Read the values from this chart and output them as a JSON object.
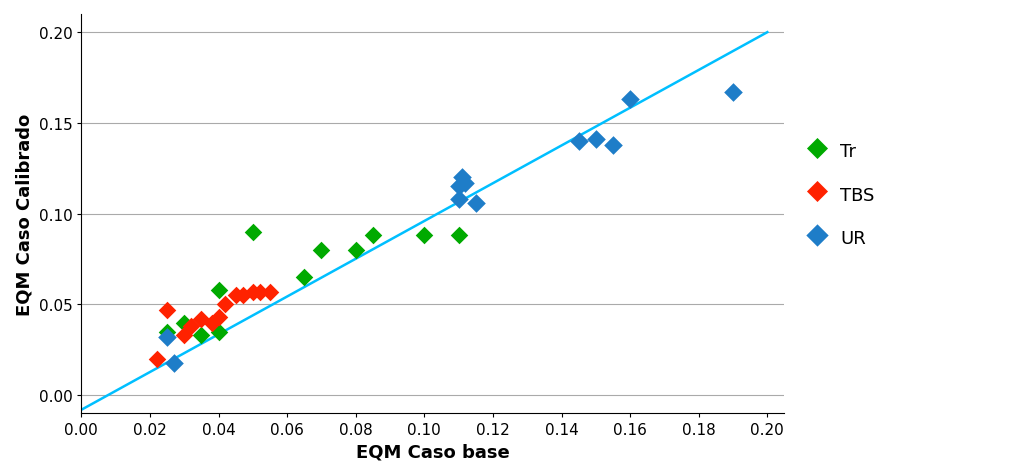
{
  "tr_x": [
    0.025,
    0.03,
    0.035,
    0.04,
    0.04,
    0.05,
    0.065,
    0.07,
    0.08,
    0.085,
    0.1,
    0.11
  ],
  "tr_y": [
    0.035,
    0.04,
    0.033,
    0.058,
    0.035,
    0.09,
    0.065,
    0.08,
    0.08,
    0.088,
    0.088,
    0.088
  ],
  "tbs_x": [
    0.022,
    0.025,
    0.03,
    0.032,
    0.035,
    0.038,
    0.04,
    0.042,
    0.045,
    0.047,
    0.05,
    0.052,
    0.055
  ],
  "tbs_y": [
    0.02,
    0.047,
    0.033,
    0.038,
    0.042,
    0.04,
    0.043,
    0.05,
    0.055,
    0.055,
    0.057,
    0.057,
    0.057
  ],
  "ur_x": [
    0.025,
    0.027,
    0.11,
    0.11,
    0.111,
    0.112,
    0.115,
    0.145,
    0.15,
    0.155,
    0.16,
    0.19
  ],
  "ur_y": [
    0.032,
    0.018,
    0.108,
    0.115,
    0.12,
    0.117,
    0.106,
    0.14,
    0.141,
    0.138,
    0.163,
    0.167
  ],
  "line_x": [
    0.0,
    0.2
  ],
  "line_y": [
    -0.008,
    0.2
  ],
  "xlim": [
    0.0,
    0.205
  ],
  "ylim": [
    -0.01,
    0.21
  ],
  "xticks": [
    0.0,
    0.02,
    0.04,
    0.06,
    0.08,
    0.1,
    0.12,
    0.14,
    0.16,
    0.18,
    0.2
  ],
  "yticks": [
    0.0,
    0.05,
    0.1,
    0.15,
    0.2
  ],
  "xlabel": "EQM Caso base",
  "ylabel": "EQM Caso Calibrado",
  "tr_color": "#00AA00",
  "tbs_color": "#FF2200",
  "ur_color": "#1E7DC8",
  "line_color": "#00BFFF",
  "marker_size": 10,
  "legend_labels": [
    "Tr",
    "TBS",
    "UR"
  ],
  "background_color": "#FFFFFF"
}
